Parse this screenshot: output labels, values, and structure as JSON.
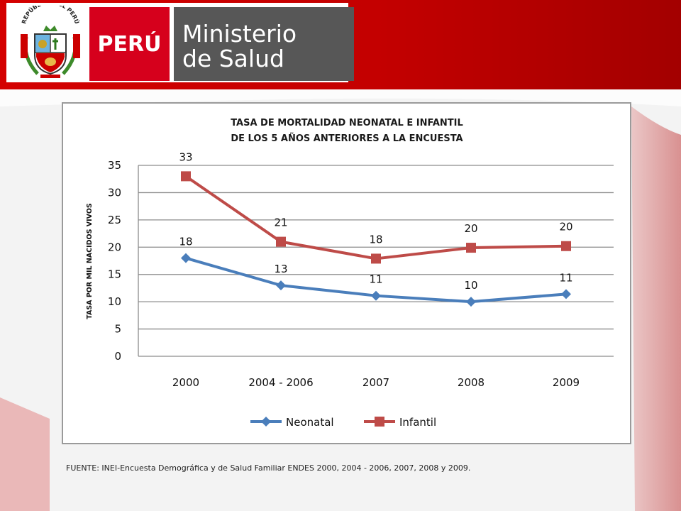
{
  "header": {
    "crest_text": "REPÚBLICA DEL PERÚ",
    "country": "PERÚ",
    "ministry_line1": "Ministerio",
    "ministry_line2": "de Salud",
    "brand_red": "#d6001c",
    "brand_gray": "#575757"
  },
  "chart_data": {
    "type": "line",
    "title": [
      "TASA DE MORTALIDAD NEONATAL E INFANTIL",
      "DE LOS 5 AÑOS ANTERIORES A LA ENCUESTA"
    ],
    "xlabel": "",
    "ylabel": "TASA POR MIL NACIDOS VIVOS",
    "categories": [
      "2000",
      "2004 - 2006",
      "2007",
      "2008",
      "2009"
    ],
    "ylim": [
      0,
      35
    ],
    "yticks": [
      0,
      5,
      10,
      15,
      20,
      25,
      30,
      35
    ],
    "grid": "horizontal",
    "legend_position": "bottom",
    "series": [
      {
        "name": "Neonatal",
        "values": [
          18,
          13,
          11.1,
          10,
          11.4
        ],
        "labels": [
          "18",
          "13",
          "11",
          "10",
          "11"
        ],
        "color": "#4a7ebb",
        "marker": "diamond"
      },
      {
        "name": "Infantil",
        "values": [
          33,
          21,
          17.9,
          19.9,
          20.2
        ],
        "labels": [
          "33",
          "21",
          "18",
          "20",
          "20"
        ],
        "color": "#be4b48",
        "marker": "square"
      }
    ]
  },
  "source": "FUENTE: INEI-Encuesta Demográfica y de Salud Familiar ENDES 2000, 2004 - 2006, 2007, 2008 y 2009."
}
